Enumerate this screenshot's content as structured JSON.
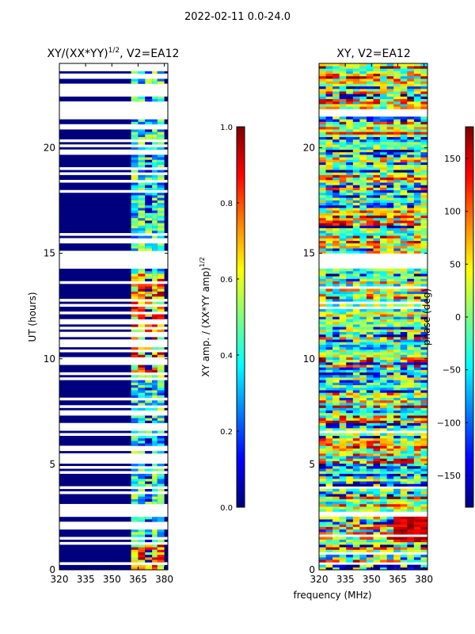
{
  "figure": {
    "suptitle": "2022-02-11 0.0-24.0",
    "xlabel": "frequency (MHz)"
  },
  "colormap": [
    "#00007f",
    "#0000ff",
    "#007fff",
    "#00ffff",
    "#7fff7f",
    "#ffff00",
    "#ff7f00",
    "#ff0000",
    "#7f0000"
  ],
  "chart_data": [
    {
      "type": "heatmap",
      "title": "XY/(XX*YY)1/2, V2=EA12",
      "title_main": "XY/(XX*YY)",
      "title_sup": "1/2",
      "title_tail": ", V2=EA12",
      "xlabel": "frequency (MHz)",
      "ylabel": "UT (hours)",
      "xlim": [
        320,
        382
      ],
      "ylim": [
        0,
        24
      ],
      "xticks": [
        320,
        335,
        350,
        365,
        380
      ],
      "yticks": [
        0,
        5,
        10,
        15,
        20
      ],
      "colorbar": {
        "label": "XY amp. / (XX*YY amp)1/2",
        "label_main": "XY amp. / (XX*YY amp)",
        "label_sup": "1/2",
        "range": [
          0.0,
          1.0
        ],
        "ticks": [
          "0.0",
          "0.2",
          "0.4",
          "0.6",
          "0.8",
          "1.0"
        ]
      }
    },
    {
      "type": "heatmap",
      "title": "XY, V2=EA12",
      "xlabel": "frequency (MHz)",
      "ylabel": "",
      "xlim": [
        320,
        382
      ],
      "ylim": [
        0,
        24
      ],
      "xticks": [
        320,
        335,
        350,
        365,
        380
      ],
      "yticks": [
        0,
        5,
        10,
        15,
        20
      ],
      "colorbar": {
        "label": "phase (deg)",
        "range": [
          -180,
          180
        ],
        "ticks": [
          "−150",
          "−100",
          "−50",
          "0",
          "50",
          "100",
          "150"
        ],
        "tick_values": [
          -150,
          -100,
          -50,
          0,
          50,
          100,
          150
        ]
      }
    }
  ]
}
